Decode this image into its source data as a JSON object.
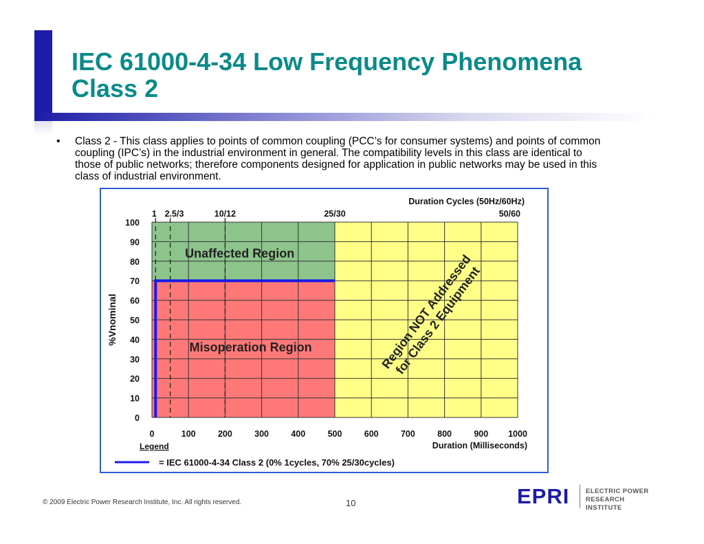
{
  "slide": {
    "title_line1": "IEC 61000-4-34 Low Frequency Phenomena",
    "title_line2": "Class 2",
    "bullet_symbol": "•",
    "body": "Class 2 - This class applies to points of common coupling (PCC’s for consumer systems) and points of common coupling (IPC’s) in the industrial environment in general. The compatibility levels in this class are identical to those of public networks; therefore components designed for application in public networks may be used in this class of industrial environment.",
    "footer": "© 2009 Electric Power Research Institute, Inc. All rights reserved.",
    "page_number": "10",
    "logo": {
      "wordmark": "EPRI",
      "line1": "ELECTRIC POWER",
      "line2": "RESEARCH INSTITUTE"
    },
    "colors": {
      "title": "#0b8a8a",
      "accent": "#1c1ca8",
      "frame_border": "#2d5cd6"
    }
  },
  "chart_data": {
    "type": "area",
    "xlabel": "Duration (Milliseconds)",
    "ylabel": "%Vnominal",
    "xlim": [
      0,
      1000
    ],
    "ylim": [
      0,
      100
    ],
    "x_ticks": [
      0,
      100,
      200,
      300,
      400,
      500,
      600,
      700,
      800,
      900,
      1000
    ],
    "y_ticks": [
      0,
      10,
      20,
      30,
      40,
      50,
      60,
      70,
      80,
      90,
      100
    ],
    "grid": true,
    "top_axis_title": "Duration Cycles (50Hz/60Hz)",
    "top_axis_labels": [
      {
        "label": "1",
        "x": 10
      },
      {
        "label": "2.5/3",
        "x": 50
      },
      {
        "label": "10/12",
        "x": 200
      },
      {
        "label": "25/30",
        "x": 500
      },
      {
        "label": "50/60",
        "x": 1000
      }
    ],
    "dashed_verticals": [
      10,
      50,
      200
    ],
    "regions": [
      {
        "name": "Unaffected Region",
        "x": [
          0,
          500
        ],
        "y": [
          70,
          100
        ],
        "color": "#8cc48c"
      },
      {
        "name": "Misoperation Region",
        "x": [
          0,
          500
        ],
        "y": [
          0,
          70
        ],
        "color": "#ff7878"
      },
      {
        "name": "Region NOT Addressed for Class 2 Equipment",
        "x": [
          500,
          1000
        ],
        "y": [
          0,
          100
        ],
        "color": "#ffff88"
      }
    ],
    "series": [
      {
        "name": "= IEC 61000-4-34 Class 2 (0% 1cycles, 70% 25/30cycles)",
        "x": [
          10,
          10,
          500
        ],
        "y": [
          0,
          70,
          70
        ],
        "color": "#1a1ae6"
      }
    ],
    "legend_title": "Legend",
    "legend_placement": "bottom-left"
  }
}
